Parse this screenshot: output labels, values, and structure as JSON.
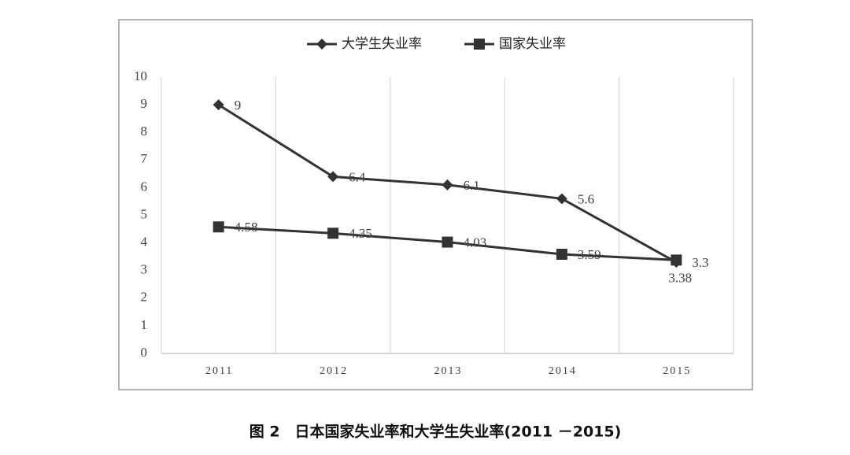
{
  "chart_data": {
    "type": "line",
    "caption": "图 2　日本国家失业率和大学生失业率(2011 －2015)",
    "categories": [
      "2011",
      "2012",
      "2013",
      "2014",
      "2015"
    ],
    "series": [
      {
        "name": "大学生失业率",
        "color": "#333333",
        "marker": "diamond",
        "values": [
          9,
          6.4,
          6.1,
          5.6,
          3.3
        ]
      },
      {
        "name": "国家失业率",
        "color": "#333333",
        "marker": "square",
        "values": [
          4.58,
          4.35,
          4.03,
          3.59,
          3.38
        ]
      }
    ],
    "ylim": [
      0,
      10
    ],
    "yticks": [
      0,
      1,
      2,
      3,
      4,
      5,
      6,
      7,
      8,
      9,
      10
    ],
    "grid": "vertical",
    "legend": "top"
  }
}
